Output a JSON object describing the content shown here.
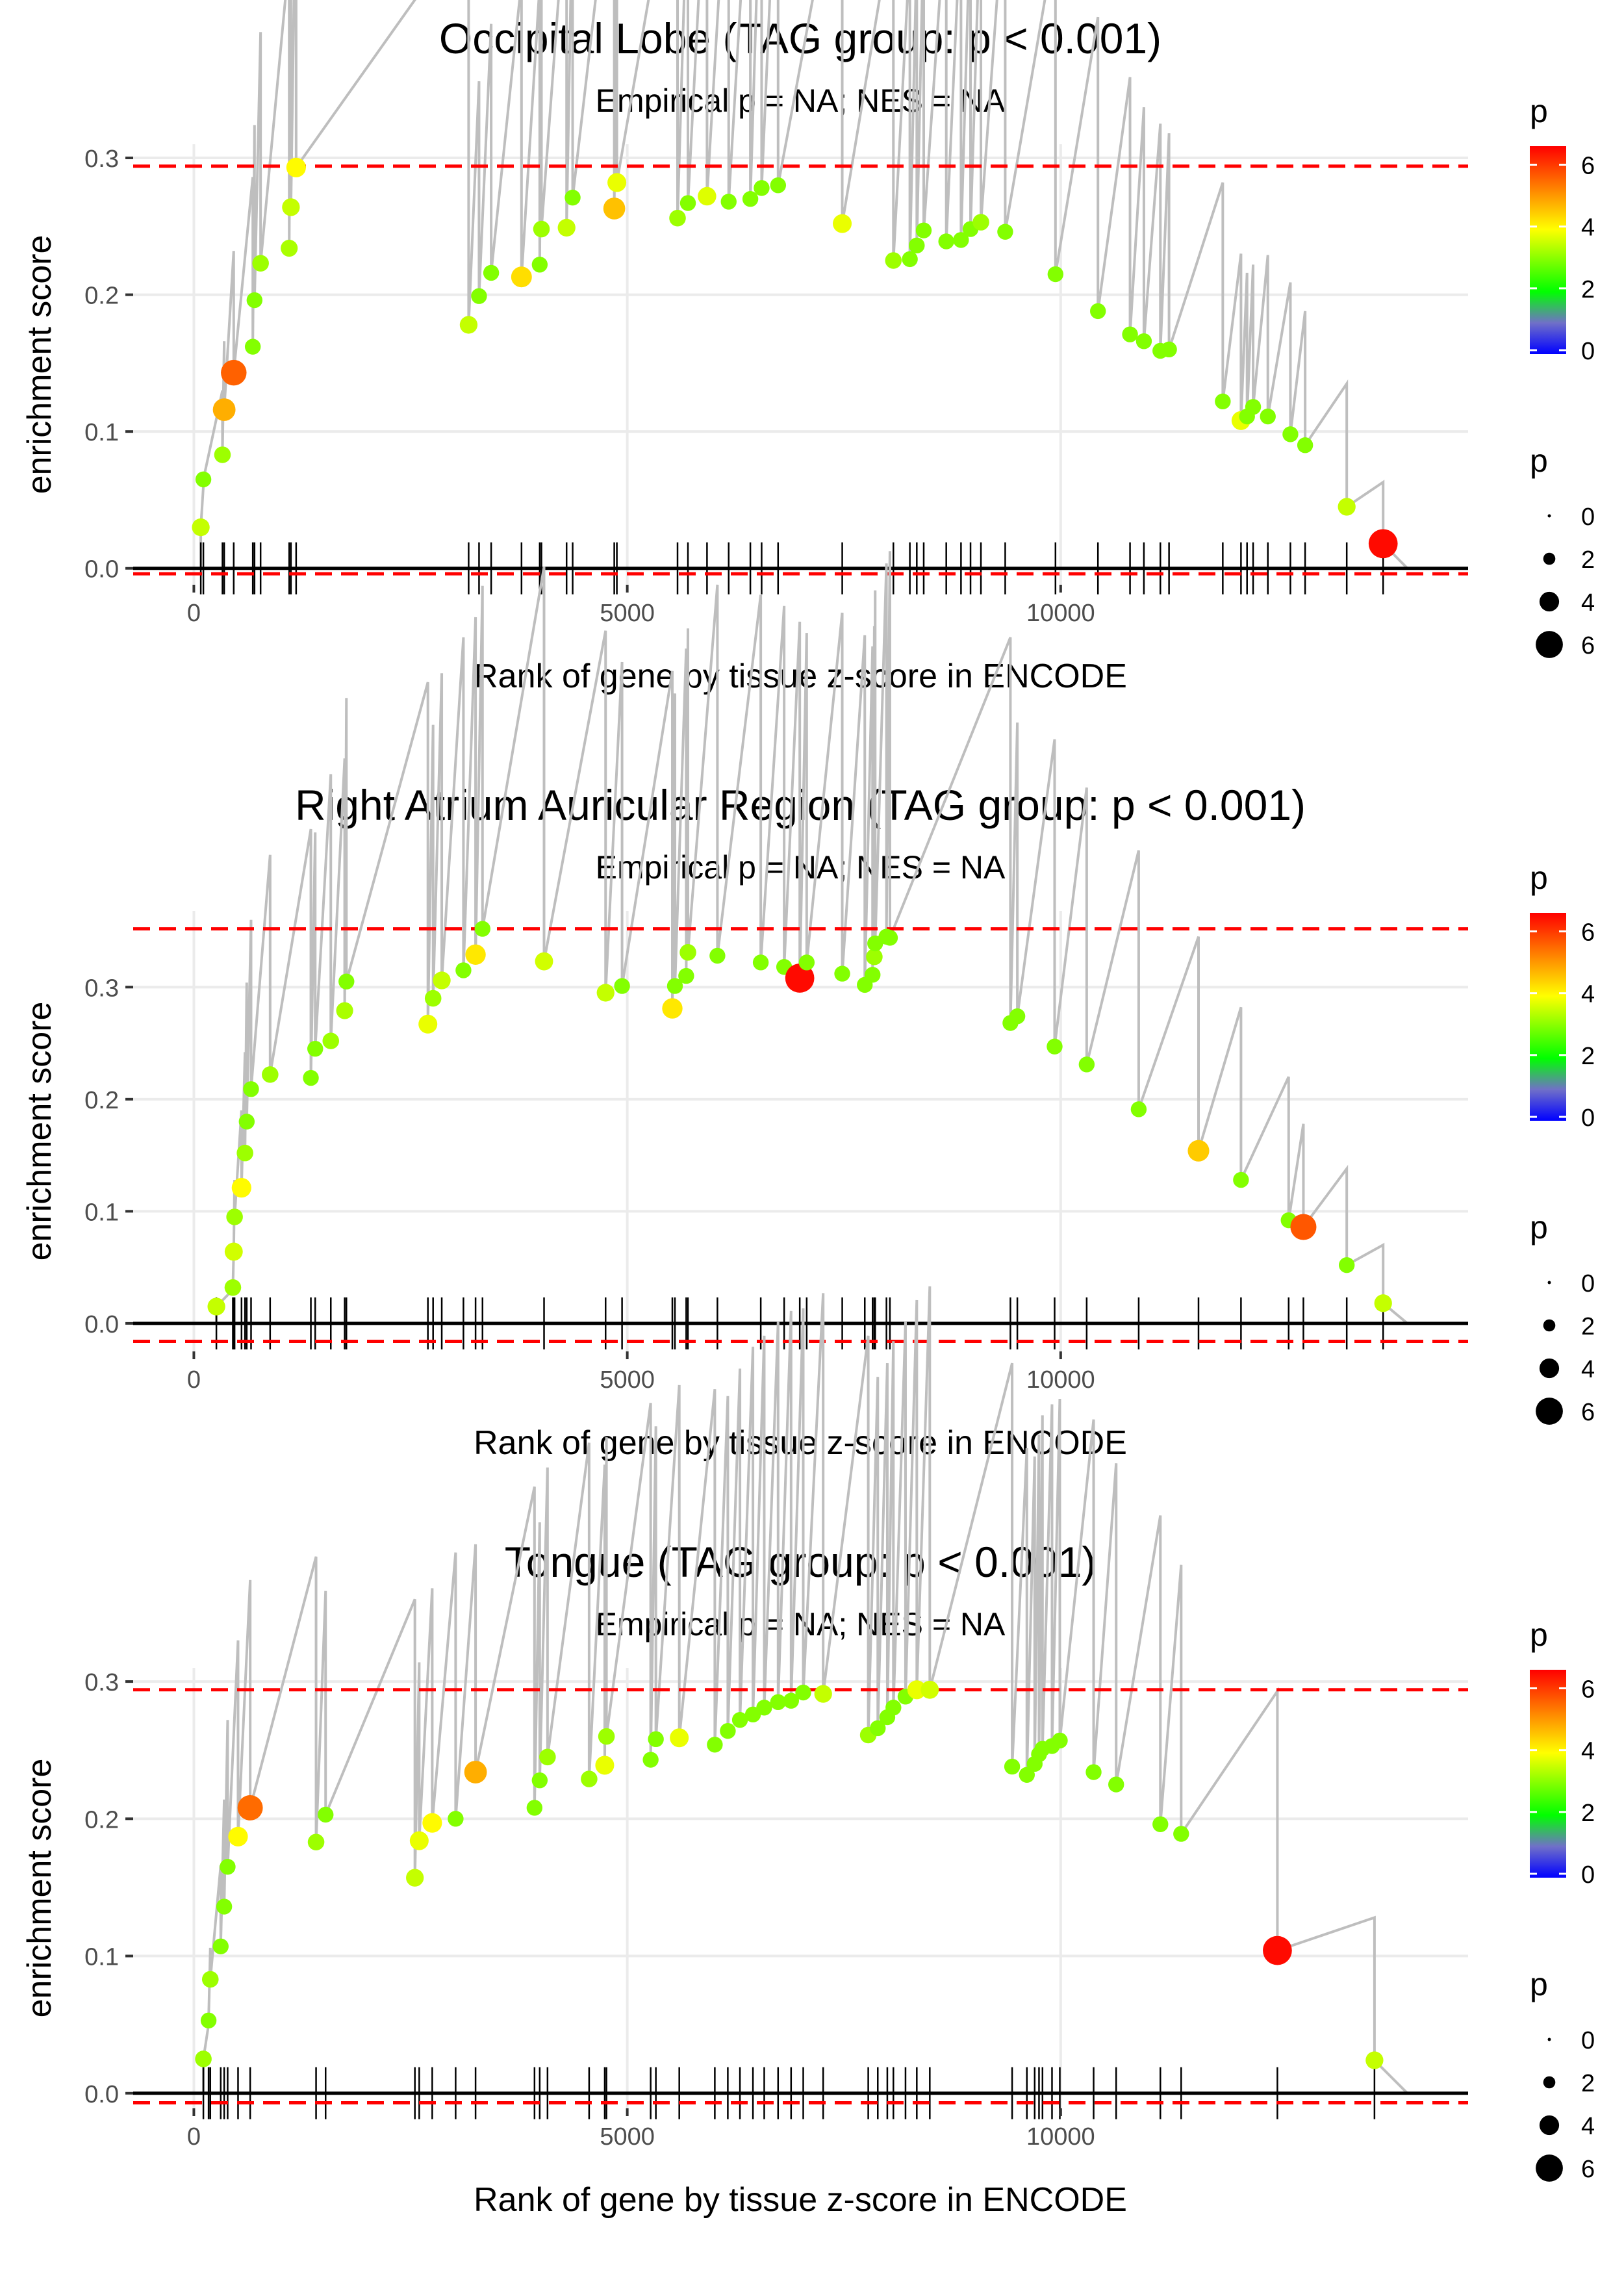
{
  "chart_data": [
    {
      "type": "scatter",
      "title": "Occipital Lobe (TAG group: p < 0.001)",
      "subtitle": "Empirical p = NA; NES = NA",
      "xlabel": "Rank of gene by tissue z-score in ENCODE",
      "ylabel": "enrichment score",
      "xlim": [
        -700,
        14700
      ],
      "ylim": [
        -0.012,
        0.31
      ],
      "xticks": [
        0,
        5000,
        10000
      ],
      "yticks": [
        0.0,
        0.1,
        0.2,
        0.3
      ],
      "xtick_labels": [
        "0",
        "5000",
        "10000"
      ],
      "ytick_labels": [
        "0.0",
        "0.1",
        "0.2",
        "0.3"
      ],
      "max_line": 0.294,
      "min_line": -0.004,
      "x_end": 14000,
      "points": [
        [
          80,
          0.03,
          3.5
        ],
        [
          110,
          0.065,
          3.0
        ],
        [
          330,
          0.083,
          3.2
        ],
        [
          350,
          0.116,
          4.8
        ],
        [
          460,
          0.143,
          5.6
        ],
        [
          680,
          0.162,
          3.0
        ],
        [
          700,
          0.196,
          3.0
        ],
        [
          770,
          0.223,
          3.2
        ],
        [
          1100,
          0.234,
          3.3
        ],
        [
          1120,
          0.264,
          3.5
        ],
        [
          1180,
          0.293,
          4.0
        ],
        [
          3170,
          0.178,
          3.5
        ],
        [
          3290,
          0.199,
          3.0
        ],
        [
          3430,
          0.216,
          3.0
        ],
        [
          3780,
          0.213,
          4.3
        ],
        [
          3990,
          0.222,
          3.0
        ],
        [
          4010,
          0.248,
          3.2
        ],
        [
          4300,
          0.249,
          3.5
        ],
        [
          4370,
          0.271,
          3.0
        ],
        [
          4850,
          0.263,
          4.6
        ],
        [
          4880,
          0.282,
          3.8
        ],
        [
          5580,
          0.256,
          3.2
        ],
        [
          5700,
          0.267,
          3.0
        ],
        [
          5920,
          0.272,
          3.7
        ],
        [
          6170,
          0.268,
          3.0
        ],
        [
          6420,
          0.27,
          3.0
        ],
        [
          6550,
          0.278,
          3.0
        ],
        [
          6740,
          0.28,
          3.0
        ],
        [
          7480,
          0.252,
          3.8
        ],
        [
          8070,
          0.225,
          3.2
        ],
        [
          8260,
          0.226,
          3.0
        ],
        [
          8340,
          0.236,
          3.0
        ],
        [
          8420,
          0.247,
          3.0
        ],
        [
          8680,
          0.239,
          3.0
        ],
        [
          8850,
          0.24,
          3.0
        ],
        [
          8960,
          0.248,
          3.0
        ],
        [
          9080,
          0.253,
          3.2
        ],
        [
          9360,
          0.246,
          3.0
        ],
        [
          9940,
          0.215,
          3.0
        ],
        [
          10430,
          0.188,
          3.0
        ],
        [
          10800,
          0.171,
          3.0
        ],
        [
          10960,
          0.166,
          3.0
        ],
        [
          11150,
          0.159,
          3.0
        ],
        [
          11250,
          0.16,
          3.0
        ],
        [
          11870,
          0.122,
          3.0
        ],
        [
          12080,
          0.108,
          3.8
        ],
        [
          12150,
          0.111,
          3.0
        ],
        [
          12220,
          0.118,
          3.0
        ],
        [
          12390,
          0.111,
          3.0
        ],
        [
          12650,
          0.098,
          3.0
        ],
        [
          12820,
          0.09,
          3.0
        ],
        [
          13300,
          0.045,
          3.5
        ],
        [
          13720,
          0.018,
          6.5
        ]
      ],
      "ticks": [
        80,
        110,
        330,
        350,
        460,
        680,
        700,
        770,
        1100,
        1120,
        1180,
        3170,
        3290,
        3430,
        3780,
        3990,
        4010,
        4300,
        4370,
        4850,
        4880,
        5580,
        5700,
        5920,
        6170,
        6420,
        6550,
        6740,
        7480,
        8070,
        8260,
        8340,
        8420,
        8680,
        8850,
        8960,
        9080,
        9360,
        9940,
        10430,
        10800,
        10960,
        11150,
        11250,
        11870,
        12080,
        12150,
        12220,
        12390,
        12650,
        12820,
        13300,
        13720
      ],
      "legend": {
        "title": "p",
        "colorbar_labels": [
          "0",
          "2",
          "4",
          "6"
        ],
        "size_labels": [
          "0",
          "2",
          "4",
          "6"
        ]
      }
    },
    {
      "type": "scatter",
      "title": "Right Atrium Auricular Region (TAG group: p < 0.001)",
      "subtitle": "Empirical p = NA; NES = NA",
      "xlabel": "Rank of gene by tissue z-score in ENCODE",
      "ylabel": "enrichment score",
      "xlim": [
        -700,
        14700
      ],
      "ylim": [
        -0.025,
        0.368
      ],
      "xticks": [
        0,
        5000,
        10000
      ],
      "yticks": [
        0.0,
        0.1,
        0.2,
        0.3
      ],
      "xtick_labels": [
        "0",
        "5000",
        "10000"
      ],
      "ytick_labels": [
        "0.0",
        "0.1",
        "0.2",
        "0.3"
      ],
      "max_line": 0.352,
      "min_line": -0.016,
      "x_end": 14000,
      "points": [
        [
          260,
          0.015,
          3.5
        ],
        [
          450,
          0.032,
          3.2
        ],
        [
          460,
          0.064,
          3.6
        ],
        [
          470,
          0.095,
          3.2
        ],
        [
          550,
          0.121,
          4.0
        ],
        [
          590,
          0.152,
          3.2
        ],
        [
          610,
          0.18,
          3.0
        ],
        [
          660,
          0.209,
          3.0
        ],
        [
          880,
          0.222,
          3.2
        ],
        [
          1350,
          0.219,
          3.0
        ],
        [
          1400,
          0.245,
          3.0
        ],
        [
          1580,
          0.252,
          3.2
        ],
        [
          1740,
          0.279,
          3.3
        ],
        [
          1760,
          0.305,
          3.0
        ],
        [
          2700,
          0.267,
          3.8
        ],
        [
          2760,
          0.29,
          3.2
        ],
        [
          2860,
          0.306,
          3.5
        ],
        [
          3110,
          0.315,
          3.0
        ],
        [
          3250,
          0.329,
          4.2
        ],
        [
          3330,
          0.352,
          3.0
        ],
        [
          4040,
          0.323,
          3.6
        ],
        [
          4750,
          0.295,
          3.5
        ],
        [
          4940,
          0.301,
          3.0
        ],
        [
          5520,
          0.281,
          4.2
        ],
        [
          5550,
          0.301,
          3.0
        ],
        [
          5680,
          0.31,
          3.0
        ],
        [
          5700,
          0.331,
          3.2
        ],
        [
          6040,
          0.328,
          3.0
        ],
        [
          6540,
          0.322,
          3.0
        ],
        [
          6810,
          0.318,
          3.0
        ],
        [
          6990,
          0.308,
          6.5
        ],
        [
          7070,
          0.322,
          3.0
        ],
        [
          7480,
          0.312,
          3.0
        ],
        [
          7740,
          0.302,
          3.0
        ],
        [
          7830,
          0.311,
          3.0
        ],
        [
          7850,
          0.327,
          3.2
        ],
        [
          7860,
          0.339,
          3.0
        ],
        [
          7990,
          0.345,
          3.0
        ],
        [
          8030,
          0.344,
          3.0
        ],
        [
          9420,
          0.268,
          3.0
        ],
        [
          9500,
          0.274,
          3.0
        ],
        [
          9930,
          0.247,
          3.0
        ],
        [
          10300,
          0.231,
          3.0
        ],
        [
          10900,
          0.191,
          3.0
        ],
        [
          11590,
          0.154,
          4.5
        ],
        [
          12080,
          0.128,
          3.0
        ],
        [
          12630,
          0.092,
          3.0
        ],
        [
          12800,
          0.086,
          5.7
        ],
        [
          13300,
          0.052,
          3.0
        ],
        [
          13720,
          0.018,
          3.5
        ]
      ],
      "ticks": [
        260,
        450,
        460,
        470,
        550,
        590,
        610,
        660,
        880,
        1350,
        1400,
        1580,
        1740,
        1760,
        2700,
        2760,
        2860,
        3110,
        3250,
        3330,
        4040,
        4750,
        4940,
        5520,
        5550,
        5680,
        5700,
        6040,
        6540,
        6810,
        6990,
        7070,
        7480,
        7740,
        7830,
        7850,
        7860,
        7990,
        8030,
        9420,
        9500,
        9930,
        10300,
        10900,
        11590,
        12080,
        12630,
        12800,
        13300,
        13720
      ],
      "legend": {
        "title": "p",
        "colorbar_labels": [
          "0",
          "2",
          "4",
          "6"
        ],
        "size_labels": [
          "0",
          "2",
          "4",
          "6"
        ]
      }
    },
    {
      "type": "scatter",
      "title": "Tongue (TAG group: p < 0.001)",
      "subtitle": "Empirical p = NA; NES = NA",
      "xlabel": "Rank of gene by tissue z-score in ENCODE",
      "ylabel": "enrichment score",
      "xlim": [
        -700,
        14700
      ],
      "ylim": [
        -0.011,
        0.31
      ],
      "xticks": [
        0,
        5000,
        10000
      ],
      "yticks": [
        0.0,
        0.1,
        0.2,
        0.3
      ],
      "xtick_labels": [
        "0",
        "5000",
        "10000"
      ],
      "ytick_labels": [
        "0.0",
        "0.1",
        "0.2",
        "0.3"
      ],
      "max_line": 0.294,
      "min_line": -0.007,
      "x_end": 14000,
      "points": [
        [
          110,
          0.025,
          3.2
        ],
        [
          170,
          0.053,
          3.0
        ],
        [
          190,
          0.083,
          3.2
        ],
        [
          310,
          0.107,
          3.0
        ],
        [
          350,
          0.136,
          3.0
        ],
        [
          390,
          0.165,
          3.0
        ],
        [
          510,
          0.187,
          4.0
        ],
        [
          650,
          0.208,
          5.5
        ],
        [
          1410,
          0.183,
          3.2
        ],
        [
          1520,
          0.203,
          3.0
        ],
        [
          2550,
          0.157,
          3.5
        ],
        [
          2600,
          0.184,
          3.8
        ],
        [
          2750,
          0.197,
          4.0
        ],
        [
          3020,
          0.2,
          3.0
        ],
        [
          3250,
          0.234,
          4.8
        ],
        [
          3930,
          0.208,
          3.0
        ],
        [
          3990,
          0.228,
          3.0
        ],
        [
          4080,
          0.245,
          3.2
        ],
        [
          4560,
          0.229,
          3.2
        ],
        [
          4740,
          0.239,
          3.8
        ],
        [
          4760,
          0.26,
          3.2
        ],
        [
          5270,
          0.243,
          3.0
        ],
        [
          5330,
          0.258,
          3.0
        ],
        [
          5600,
          0.259,
          3.8
        ],
        [
          6010,
          0.254,
          3.0
        ],
        [
          6160,
          0.264,
          3.0
        ],
        [
          6300,
          0.272,
          3.0
        ],
        [
          6450,
          0.276,
          3.0
        ],
        [
          6580,
          0.281,
          3.0
        ],
        [
          6740,
          0.285,
          3.0
        ],
        [
          6890,
          0.286,
          3.0
        ],
        [
          7030,
          0.292,
          3.0
        ],
        [
          7260,
          0.291,
          3.5
        ],
        [
          7780,
          0.261,
          3.2
        ],
        [
          7890,
          0.266,
          3.0
        ],
        [
          8000,
          0.274,
          3.0
        ],
        [
          8070,
          0.281,
          3.0
        ],
        [
          8210,
          0.289,
          3.0
        ],
        [
          8340,
          0.294,
          3.8
        ],
        [
          8490,
          0.294,
          3.6
        ],
        [
          9440,
          0.238,
          3.0
        ],
        [
          9610,
          0.232,
          3.0
        ],
        [
          9700,
          0.24,
          3.0
        ],
        [
          9750,
          0.247,
          3.0
        ],
        [
          9790,
          0.251,
          3.0
        ],
        [
          9900,
          0.253,
          3.0
        ],
        [
          9990,
          0.257,
          3.0
        ],
        [
          10380,
          0.234,
          3.0
        ],
        [
          10640,
          0.225,
          3.0
        ],
        [
          11150,
          0.196,
          3.0
        ],
        [
          11390,
          0.189,
          3.0
        ],
        [
          12500,
          0.104,
          6.5
        ],
        [
          13620,
          0.024,
          3.5
        ]
      ],
      "ticks": [
        110,
        170,
        190,
        310,
        350,
        390,
        510,
        650,
        1410,
        1520,
        2550,
        2600,
        2750,
        3020,
        3250,
        3930,
        3990,
        4080,
        4560,
        4740,
        4760,
        5270,
        5330,
        5600,
        6010,
        6160,
        6300,
        6450,
        6580,
        6740,
        6890,
        7030,
        7260,
        7780,
        7890,
        8000,
        8070,
        8210,
        8340,
        8490,
        9440,
        9610,
        9700,
        9750,
        9790,
        9900,
        9990,
        10380,
        10640,
        11150,
        11390,
        12500,
        13620
      ],
      "legend": {
        "title": "p",
        "colorbar_labels": [
          "0",
          "2",
          "4",
          "6"
        ],
        "size_labels": [
          "0",
          "2",
          "4",
          "6"
        ]
      }
    }
  ],
  "colors": {
    "line": "#bebebe",
    "dashed": "#ff0000",
    "grid": "#ebebeb",
    "colorscale": [
      "#0000ff",
      "#00ff00",
      "#ffff00",
      "#ff8000",
      "#ff0000"
    ]
  }
}
